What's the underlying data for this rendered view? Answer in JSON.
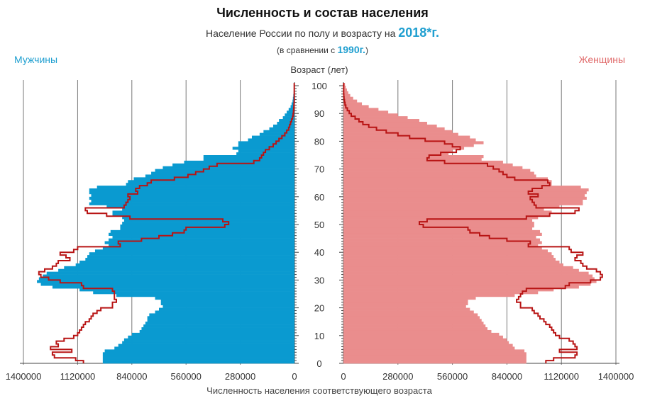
{
  "title": "Численность и состав населения",
  "subtitle_prefix": "Население России по полу и возрасту на",
  "subtitle_year": "2018*г.",
  "subtitle2_prefix": "(в сравнении с",
  "subtitle2_year": "1990г.",
  "subtitle2_suffix": ")",
  "colors": {
    "men": "#0a9ad0",
    "women": "#ea8d8d",
    "outline": "#b81414",
    "men_label": "#1f9fd0",
    "women_label": "#e06a6a"
  },
  "chart_data": {
    "type": "population_pyramid",
    "title": "Численность и состав населения",
    "left_label": "Мужчины",
    "right_label": "Женщины",
    "age_axis_label": "Возраст (лет)",
    "xlabel": "Численность населения соответствующего возраста",
    "age_ticks": [
      "0",
      "10",
      "20",
      "30",
      "40",
      "50",
      "60",
      "70",
      "80",
      "90",
      "100"
    ],
    "value_ticks": [
      "1400000",
      "1120000",
      "840000",
      "560000",
      "280000",
      "0",
      "0",
      "280000",
      "560000",
      "840000",
      "1120000",
      "1400000"
    ],
    "xlim": [
      0,
      1400000
    ],
    "ylim": [
      0,
      100
    ],
    "grid": true,
    "series": [
      {
        "name": "2018*г.",
        "values_men": [
          990000,
          990000,
          990000,
          990000,
          980000,
          930000,
          910000,
          890000,
          880000,
          860000,
          840000,
          800000,
          790000,
          780000,
          770000,
          760000,
          760000,
          750000,
          720000,
          700000,
          680000,
          690000,
          690000,
          720000,
          920000,
          1040000,
          1110000,
          1250000,
          1310000,
          1330000,
          1320000,
          1300000,
          1280000,
          1220000,
          1190000,
          1130000,
          1110000,
          1080000,
          1070000,
          1060000,
          1030000,
          990000,
          960000,
          980000,
          960000,
          940000,
          960000,
          950000,
          900000,
          900000,
          890000,
          880000,
          890000,
          940000,
          940000,
          890000,
          970000,
          1060000,
          1050000,
          1060000,
          1050000,
          1060000,
          1060000,
          1020000,
          870000,
          860000,
          830000,
          770000,
          740000,
          720000,
          680000,
          630000,
          570000,
          470000,
          470000,
          300000,
          290000,
          320000,
          290000,
          290000,
          240000,
          220000,
          180000,
          160000,
          130000,
          110000,
          90000,
          80000,
          60000,
          50000,
          40000,
          30000,
          20000,
          15000,
          10000,
          8000,
          6000,
          4000,
          3000,
          2000,
          1000
        ],
        "values_women": [
          940000,
          940000,
          940000,
          940000,
          930000,
          880000,
          870000,
          850000,
          840000,
          820000,
          800000,
          760000,
          740000,
          730000,
          720000,
          710000,
          700000,
          690000,
          670000,
          650000,
          630000,
          640000,
          640000,
          680000,
          880000,
          1000000,
          1080000,
          1210000,
          1270000,
          1300000,
          1290000,
          1280000,
          1260000,
          1210000,
          1180000,
          1130000,
          1110000,
          1090000,
          1080000,
          1070000,
          1050000,
          1020000,
          1000000,
          1020000,
          1010000,
          990000,
          1020000,
          1010000,
          970000,
          980000,
          980000,
          970000,
          1000000,
          1060000,
          1070000,
          1030000,
          1110000,
          1230000,
          1230000,
          1250000,
          1240000,
          1250000,
          1260000,
          1220000,
          1070000,
          1070000,
          1050000,
          990000,
          980000,
          960000,
          920000,
          870000,
          820000,
          710000,
          720000,
          540000,
          560000,
          620000,
          670000,
          720000,
          680000,
          650000,
          590000,
          560000,
          520000,
          480000,
          430000,
          390000,
          330000,
          280000,
          230000,
          180000,
          130000,
          95000,
          70000,
          50000,
          35000,
          25000,
          18000,
          12000,
          8000
        ]
      },
      {
        "name": "1990г.",
        "values_men": [
          1090000,
          1130000,
          1240000,
          1250000,
          1150000,
          1260000,
          1220000,
          1230000,
          1190000,
          1140000,
          1120000,
          1110000,
          1100000,
          1090000,
          1080000,
          1060000,
          1050000,
          1040000,
          1020000,
          1000000,
          940000,
          940000,
          920000,
          930000,
          930000,
          930000,
          940000,
          1090000,
          1100000,
          1210000,
          1270000,
          1310000,
          1320000,
          1290000,
          1250000,
          1230000,
          1220000,
          1160000,
          1180000,
          1210000,
          1140000,
          1120000,
          900000,
          910000,
          790000,
          700000,
          630000,
          570000,
          560000,
          360000,
          340000,
          370000,
          850000,
          970000,
          1070000,
          1080000,
          880000,
          870000,
          860000,
          850000,
          860000,
          810000,
          820000,
          800000,
          760000,
          740000,
          620000,
          550000,
          510000,
          470000,
          440000,
          400000,
          210000,
          180000,
          170000,
          160000,
          150000,
          130000,
          110000,
          95000,
          80000,
          65000,
          50000,
          40000,
          30000,
          25000,
          20000,
          15000,
          10000,
          7000,
          5000,
          4000,
          3000,
          2000,
          1000,
          1000,
          1000,
          1000,
          1000,
          1000,
          1000
        ],
        "values_women": [
          1040000,
          1080000,
          1190000,
          1200000,
          1110000,
          1200000,
          1190000,
          1180000,
          1160000,
          1110000,
          1090000,
          1080000,
          1070000,
          1060000,
          1040000,
          1030000,
          1010000,
          1000000,
          980000,
          970000,
          910000,
          910000,
          890000,
          900000,
          910000,
          920000,
          940000,
          1140000,
          1160000,
          1270000,
          1320000,
          1330000,
          1320000,
          1300000,
          1250000,
          1230000,
          1220000,
          1190000,
          1200000,
          1230000,
          1170000,
          1160000,
          950000,
          960000,
          840000,
          750000,
          700000,
          650000,
          640000,
          410000,
          390000,
          430000,
          940000,
          1060000,
          1190000,
          1210000,
          990000,
          980000,
          970000,
          960000,
          1000000,
          950000,
          970000,
          1020000,
          1060000,
          1050000,
          880000,
          840000,
          820000,
          800000,
          770000,
          740000,
          520000,
          430000,
          440000,
          500000,
          580000,
          600000,
          560000,
          520000,
          420000,
          340000,
          280000,
          220000,
          170000,
          130000,
          100000,
          80000,
          60000,
          40000,
          30000,
          20000,
          12000,
          8000,
          5000,
          3000,
          2000,
          1000,
          1000,
          1000,
          1000
        ]
      }
    ]
  }
}
